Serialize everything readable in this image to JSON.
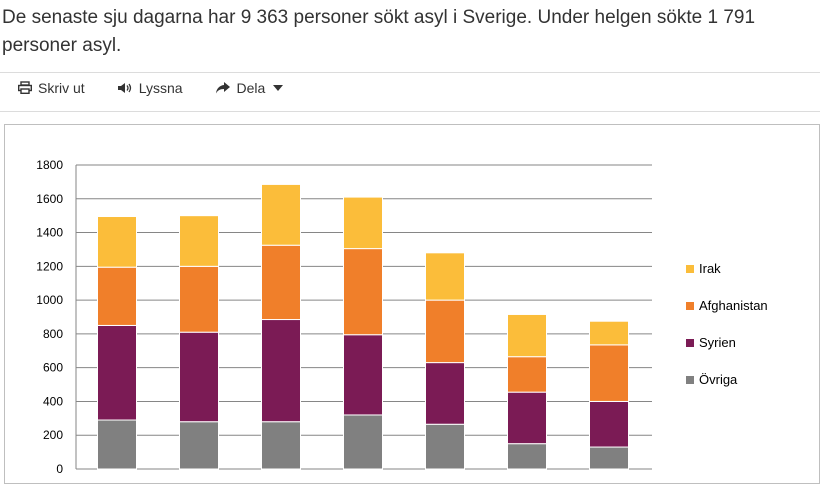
{
  "intro_text": "De senaste sju dagarna har 9 363 personer sökt asyl i Sverige. Under helgen sökte 1 791 personer asyl.",
  "toolbar": {
    "print_label": "Skriv ut",
    "listen_label": "Lyssna",
    "share_label": "Dela",
    "icons": [
      "printer-icon",
      "speaker-icon",
      "share-icon",
      "caret-down-icon"
    ]
  },
  "chart_data": {
    "type": "bar",
    "stacked": true,
    "categories": [
      "",
      "",
      "",
      "",
      "",
      "",
      ""
    ],
    "series": [
      {
        "name": "Övriga",
        "color": "#808080",
        "values": [
          290,
          280,
          280,
          320,
          265,
          150,
          130
        ]
      },
      {
        "name": "Syrien",
        "color": "#7b1b55",
        "values": [
          560,
          530,
          605,
          475,
          365,
          305,
          270
        ]
      },
      {
        "name": "Afghanistan",
        "color": "#f07f2a",
        "values": [
          345,
          390,
          440,
          510,
          370,
          210,
          335
        ]
      },
      {
        "name": "Irak",
        "color": "#fbbd3a",
        "values": [
          300,
          300,
          360,
          305,
          280,
          250,
          140
        ]
      }
    ],
    "legend_order": [
      "Irak",
      "Afghanistan",
      "Syrien",
      "Övriga"
    ],
    "y_ticks": [
      0,
      200,
      400,
      600,
      800,
      1000,
      1200,
      1400,
      1600,
      1800
    ],
    "ylim": [
      0,
      1800
    ],
    "grid": true,
    "legend_position": "right"
  }
}
